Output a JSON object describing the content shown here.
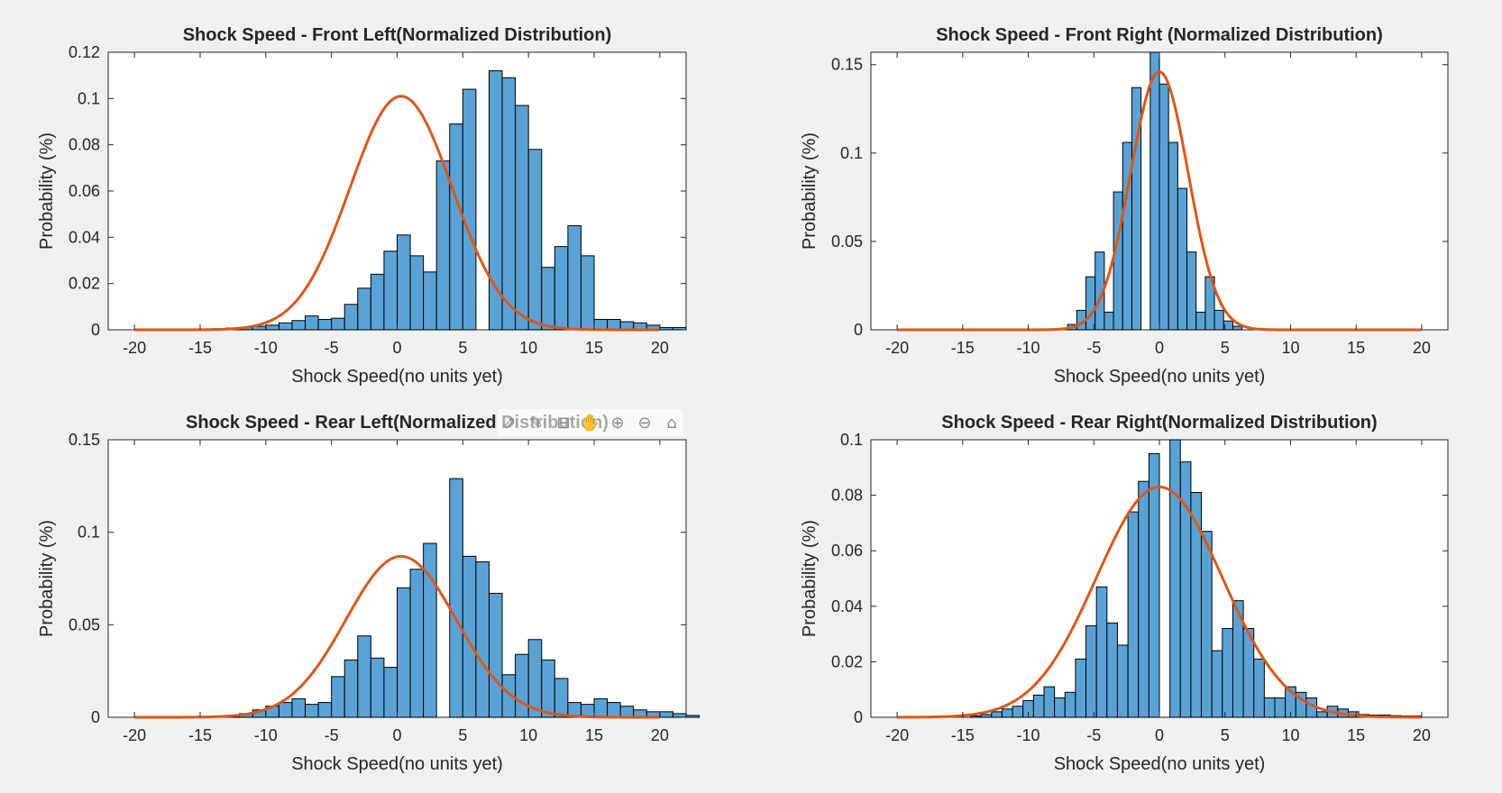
{
  "colors": {
    "bar": "#5aa2d6",
    "fit": "#d9581b"
  },
  "toolbar": {
    "icons": [
      "export-icon",
      "brush-icon",
      "datatip-icon",
      "pan-icon",
      "zoom-in-icon",
      "zoom-out-icon",
      "home-icon"
    ],
    "glyphs": [
      "⇗",
      "✎",
      "⊟",
      "✋",
      "⊕",
      "⊖",
      "⌂"
    ]
  },
  "chart_data": [
    {
      "type": "bar",
      "title": "Shock Speed - Front Left(Normalized Distribution)",
      "xlabel": "Shock Speed(no units yet)",
      "ylabel": "Probability (%)",
      "xlim": [
        -22,
        22
      ],
      "ylim": [
        0,
        0.12
      ],
      "xticks": [
        -20,
        -15,
        -10,
        -5,
        0,
        5,
        10,
        15,
        20
      ],
      "yticks": [
        0,
        0.02,
        0.04,
        0.06,
        0.08,
        0.1,
        0.12
      ],
      "ytick_labels": [
        "0",
        "0.02",
        "0.04",
        "0.06",
        "0.08",
        "0.1",
        "0.12"
      ],
      "bin_width": 1,
      "bin_edges_start": -14,
      "values": [
        0.0005,
        0.0008,
        0.001,
        0.0015,
        0.002,
        0.003,
        0.004,
        0.006,
        0.0045,
        0.005,
        0.011,
        0.018,
        0.024,
        0.034,
        0.041,
        0.032,
        0.025,
        0.073,
        0.089,
        0.104,
        0.0,
        0.112,
        0.109,
        0.097,
        0.078,
        0.027,
        0.036,
        0.045,
        0.032,
        0.0045,
        0.0045,
        0.0035,
        0.003,
        0.002,
        0.001,
        0.001
      ],
      "fit": {
        "mean": 0.3,
        "sigma": 3.9,
        "peak": 0.101
      },
      "grid": false
    },
    {
      "type": "bar",
      "title": "Shock Speed - Front Right (Normalized Distribution)",
      "xlabel": "Shock Speed(no units yet)",
      "ylabel": "Probability (%)",
      "xlim": [
        -22,
        22
      ],
      "ylim": [
        0,
        0.157
      ],
      "xticks": [
        -20,
        -15,
        -10,
        -5,
        0,
        5,
        10,
        15,
        20
      ],
      "yticks": [
        0,
        0.05,
        0.1,
        0.15
      ],
      "ytick_labels": [
        "0",
        "0.05",
        "0.1",
        "0.15"
      ],
      "bin_width": 0.7,
      "bin_edges_start": -7,
      "values": [
        0.003,
        0.011,
        0.03,
        0.044,
        0.01,
        0.078,
        0.106,
        0.137,
        0.0,
        0.157,
        0.139,
        0.106,
        0.08,
        0.044,
        0.01,
        0.03,
        0.011,
        0.005,
        0.002
      ],
      "fit": {
        "mean": 0.0,
        "sigma": 2.2,
        "peak": 0.146
      },
      "grid": false
    },
    {
      "type": "bar",
      "title": "Shock Speed - Rear Left(Normalized Distribution)",
      "xlabel": "Shock Speed(no units yet)",
      "ylabel": "Probability (%)",
      "xlim": [
        -22,
        22
      ],
      "ylim": [
        0,
        0.15
      ],
      "xticks": [
        -20,
        -15,
        -10,
        -5,
        0,
        5,
        10,
        15,
        20
      ],
      "yticks": [
        0,
        0.05,
        0.1,
        0.15
      ],
      "ytick_labels": [
        "0",
        "0.05",
        "0.1",
        "0.15"
      ],
      "bin_width": 1,
      "bin_edges_start": -13,
      "values": [
        0.001,
        0.002,
        0.004,
        0.006,
        0.008,
        0.01,
        0.007,
        0.008,
        0.022,
        0.031,
        0.044,
        0.032,
        0.027,
        0.07,
        0.08,
        0.094,
        0.0,
        0.129,
        0.087,
        0.084,
        0.067,
        0.023,
        0.034,
        0.042,
        0.031,
        0.021,
        0.008,
        0.007,
        0.01,
        0.008,
        0.006,
        0.004,
        0.003,
        0.003,
        0.002,
        0.001
      ],
      "fit": {
        "mean": 0.3,
        "sigma": 4.2,
        "peak": 0.087
      },
      "grid": false
    },
    {
      "type": "bar",
      "title": "Shock Speed - Rear Right(Normalized Distribution)",
      "xlabel": "Shock Speed(no units yet)",
      "ylabel": "Probability (%)",
      "xlim": [
        -22,
        22
      ],
      "ylim": [
        0,
        0.1
      ],
      "xticks": [
        -20,
        -15,
        -10,
        -5,
        0,
        5,
        10,
        15,
        20
      ],
      "yticks": [
        0,
        0.02,
        0.04,
        0.06,
        0.08,
        0.1
      ],
      "ytick_labels": [
        "0",
        "0.02",
        "0.04",
        "0.06",
        "0.08",
        "0.1"
      ],
      "bin_width": 0.8,
      "bin_edges_start": -14.4,
      "values": [
        0.0005,
        0.001,
        0.002,
        0.003,
        0.004,
        0.006,
        0.008,
        0.011,
        0.007,
        0.009,
        0.021,
        0.033,
        0.047,
        0.034,
        0.026,
        0.074,
        0.085,
        0.095,
        0.0,
        0.1,
        0.092,
        0.081,
        0.067,
        0.024,
        0.032,
        0.042,
        0.032,
        0.021,
        0.007,
        0.007,
        0.011,
        0.009,
        0.007,
        0.002,
        0.004,
        0.003,
        0.002,
        0.001,
        0.0008,
        0.0008,
        0.0006,
        0.0005,
        0.0005
      ],
      "fit": {
        "mean": 0.0,
        "sigma": 4.8,
        "peak": 0.083
      },
      "grid": false
    }
  ]
}
